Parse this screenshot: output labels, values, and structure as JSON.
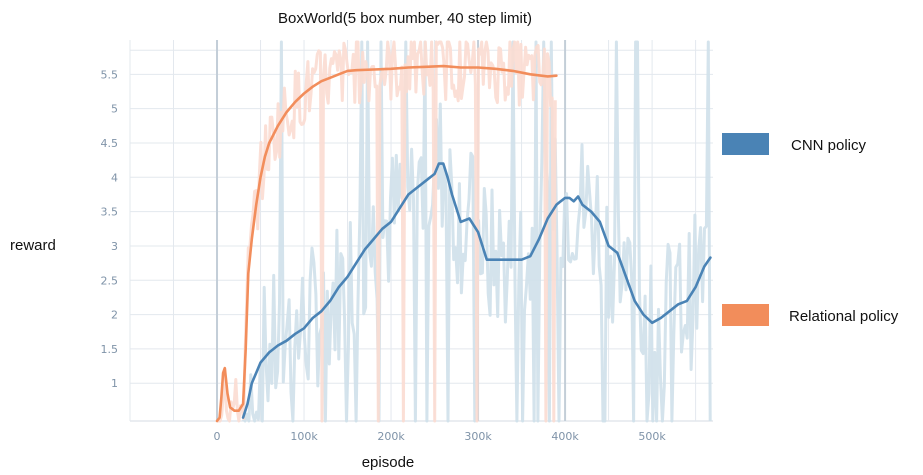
{
  "chart_data": {
    "type": "line",
    "title": "BoxWorld(5 box number, 40 step limit)",
    "xlabel": "episode",
    "ylabel": "reward",
    "xlim": [
      -100000,
      570000
    ],
    "ylim": [
      0.45,
      6.0
    ],
    "x_ticks": [
      0,
      100000,
      200000,
      300000,
      400000,
      500000
    ],
    "x_tick_labels": [
      "0",
      "100k",
      "200k",
      "300k",
      "400k",
      "500k"
    ],
    "y_ticks": [
      1,
      1.5,
      2,
      2.5,
      3,
      3.5,
      4,
      4.5,
      5,
      5.5
    ],
    "y_tick_labels": [
      "1",
      "1.5",
      "2",
      "2.5",
      "3",
      "3.5",
      "4",
      "4.5",
      "5",
      "5.5"
    ],
    "grid": true,
    "legend_position": "right",
    "series": [
      {
        "name": "CNN policy",
        "color": "#4a83b5",
        "raw_color": "#cfe0ea",
        "x": [
          30000,
          35000,
          40000,
          45000,
          50000,
          60000,
          70000,
          80000,
          90000,
          100000,
          110000,
          120000,
          130000,
          140000,
          150000,
          160000,
          170000,
          180000,
          190000,
          200000,
          210000,
          220000,
          230000,
          240000,
          250000,
          255000,
          260000,
          265000,
          270000,
          280000,
          290000,
          300000,
          310000,
          320000,
          330000,
          340000,
          350000,
          360000,
          370000,
          380000,
          390000,
          395000,
          400000,
          405000,
          410000,
          415000,
          420000,
          430000,
          440000,
          450000,
          460000,
          470000,
          480000,
          490000,
          500000,
          510000,
          520000,
          530000,
          540000,
          550000,
          560000,
          567000
        ],
        "values": [
          0.5,
          0.7,
          1.0,
          1.15,
          1.3,
          1.45,
          1.55,
          1.62,
          1.72,
          1.8,
          1.95,
          2.05,
          2.2,
          2.4,
          2.55,
          2.75,
          2.95,
          3.1,
          3.25,
          3.35,
          3.55,
          3.75,
          3.85,
          3.95,
          4.05,
          4.2,
          4.2,
          4.0,
          3.75,
          3.35,
          3.4,
          3.2,
          2.8,
          2.8,
          2.8,
          2.8,
          2.8,
          2.85,
          3.1,
          3.4,
          3.6,
          3.65,
          3.7,
          3.7,
          3.65,
          3.72,
          3.6,
          3.5,
          3.35,
          3.0,
          2.9,
          2.55,
          2.2,
          2.0,
          1.88,
          1.95,
          2.05,
          2.15,
          2.2,
          2.4,
          2.7,
          2.83
        ]
      },
      {
        "name": "Relational policy",
        "color": "#f28d5b",
        "raw_color": "#fbdcd2",
        "x": [
          0,
          3000,
          5000,
          7000,
          9000,
          12000,
          15000,
          20000,
          25000,
          30000,
          33000,
          36000,
          40000,
          45000,
          50000,
          55000,
          60000,
          70000,
          80000,
          90000,
          100000,
          110000,
          120000,
          130000,
          140000,
          150000,
          160000,
          180000,
          200000,
          220000,
          240000,
          260000,
          280000,
          300000,
          320000,
          340000,
          360000,
          380000,
          390000
        ],
        "values": [
          0.45,
          0.5,
          0.8,
          1.15,
          1.22,
          0.85,
          0.65,
          0.6,
          0.6,
          0.7,
          1.5,
          2.6,
          3.1,
          3.6,
          4.0,
          4.3,
          4.5,
          4.75,
          4.95,
          5.1,
          5.22,
          5.32,
          5.4,
          5.45,
          5.5,
          5.55,
          5.56,
          5.57,
          5.58,
          5.6,
          5.61,
          5.62,
          5.6,
          5.6,
          5.58,
          5.55,
          5.5,
          5.47,
          5.48
        ]
      }
    ]
  }
}
